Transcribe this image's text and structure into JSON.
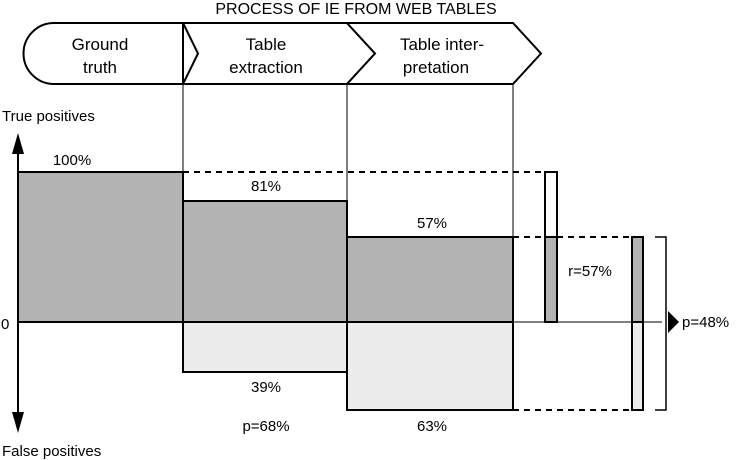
{
  "title": "PROCESS OF IE FROM WEB TABLES",
  "stages": [
    {
      "lines": [
        "Ground",
        "truth"
      ]
    },
    {
      "lines": [
        "Table",
        "extraction"
      ]
    },
    {
      "lines": [
        "Table inter-",
        "pretation"
      ]
    }
  ],
  "axis": {
    "top_label": "True positives",
    "bottom_label": "False positives",
    "zero_label": "0"
  },
  "true_positive_labels": [
    "100%",
    "81%",
    "57%"
  ],
  "false_positive_labels": [
    "39%",
    "63%"
  ],
  "precision_extraction": "p=68%",
  "recall_label": "r=57%",
  "precision_final": "p=48%",
  "colors": {
    "true_fill": "#b3b3b3",
    "false_fill": "#ececec",
    "stroke": "#000000"
  }
}
